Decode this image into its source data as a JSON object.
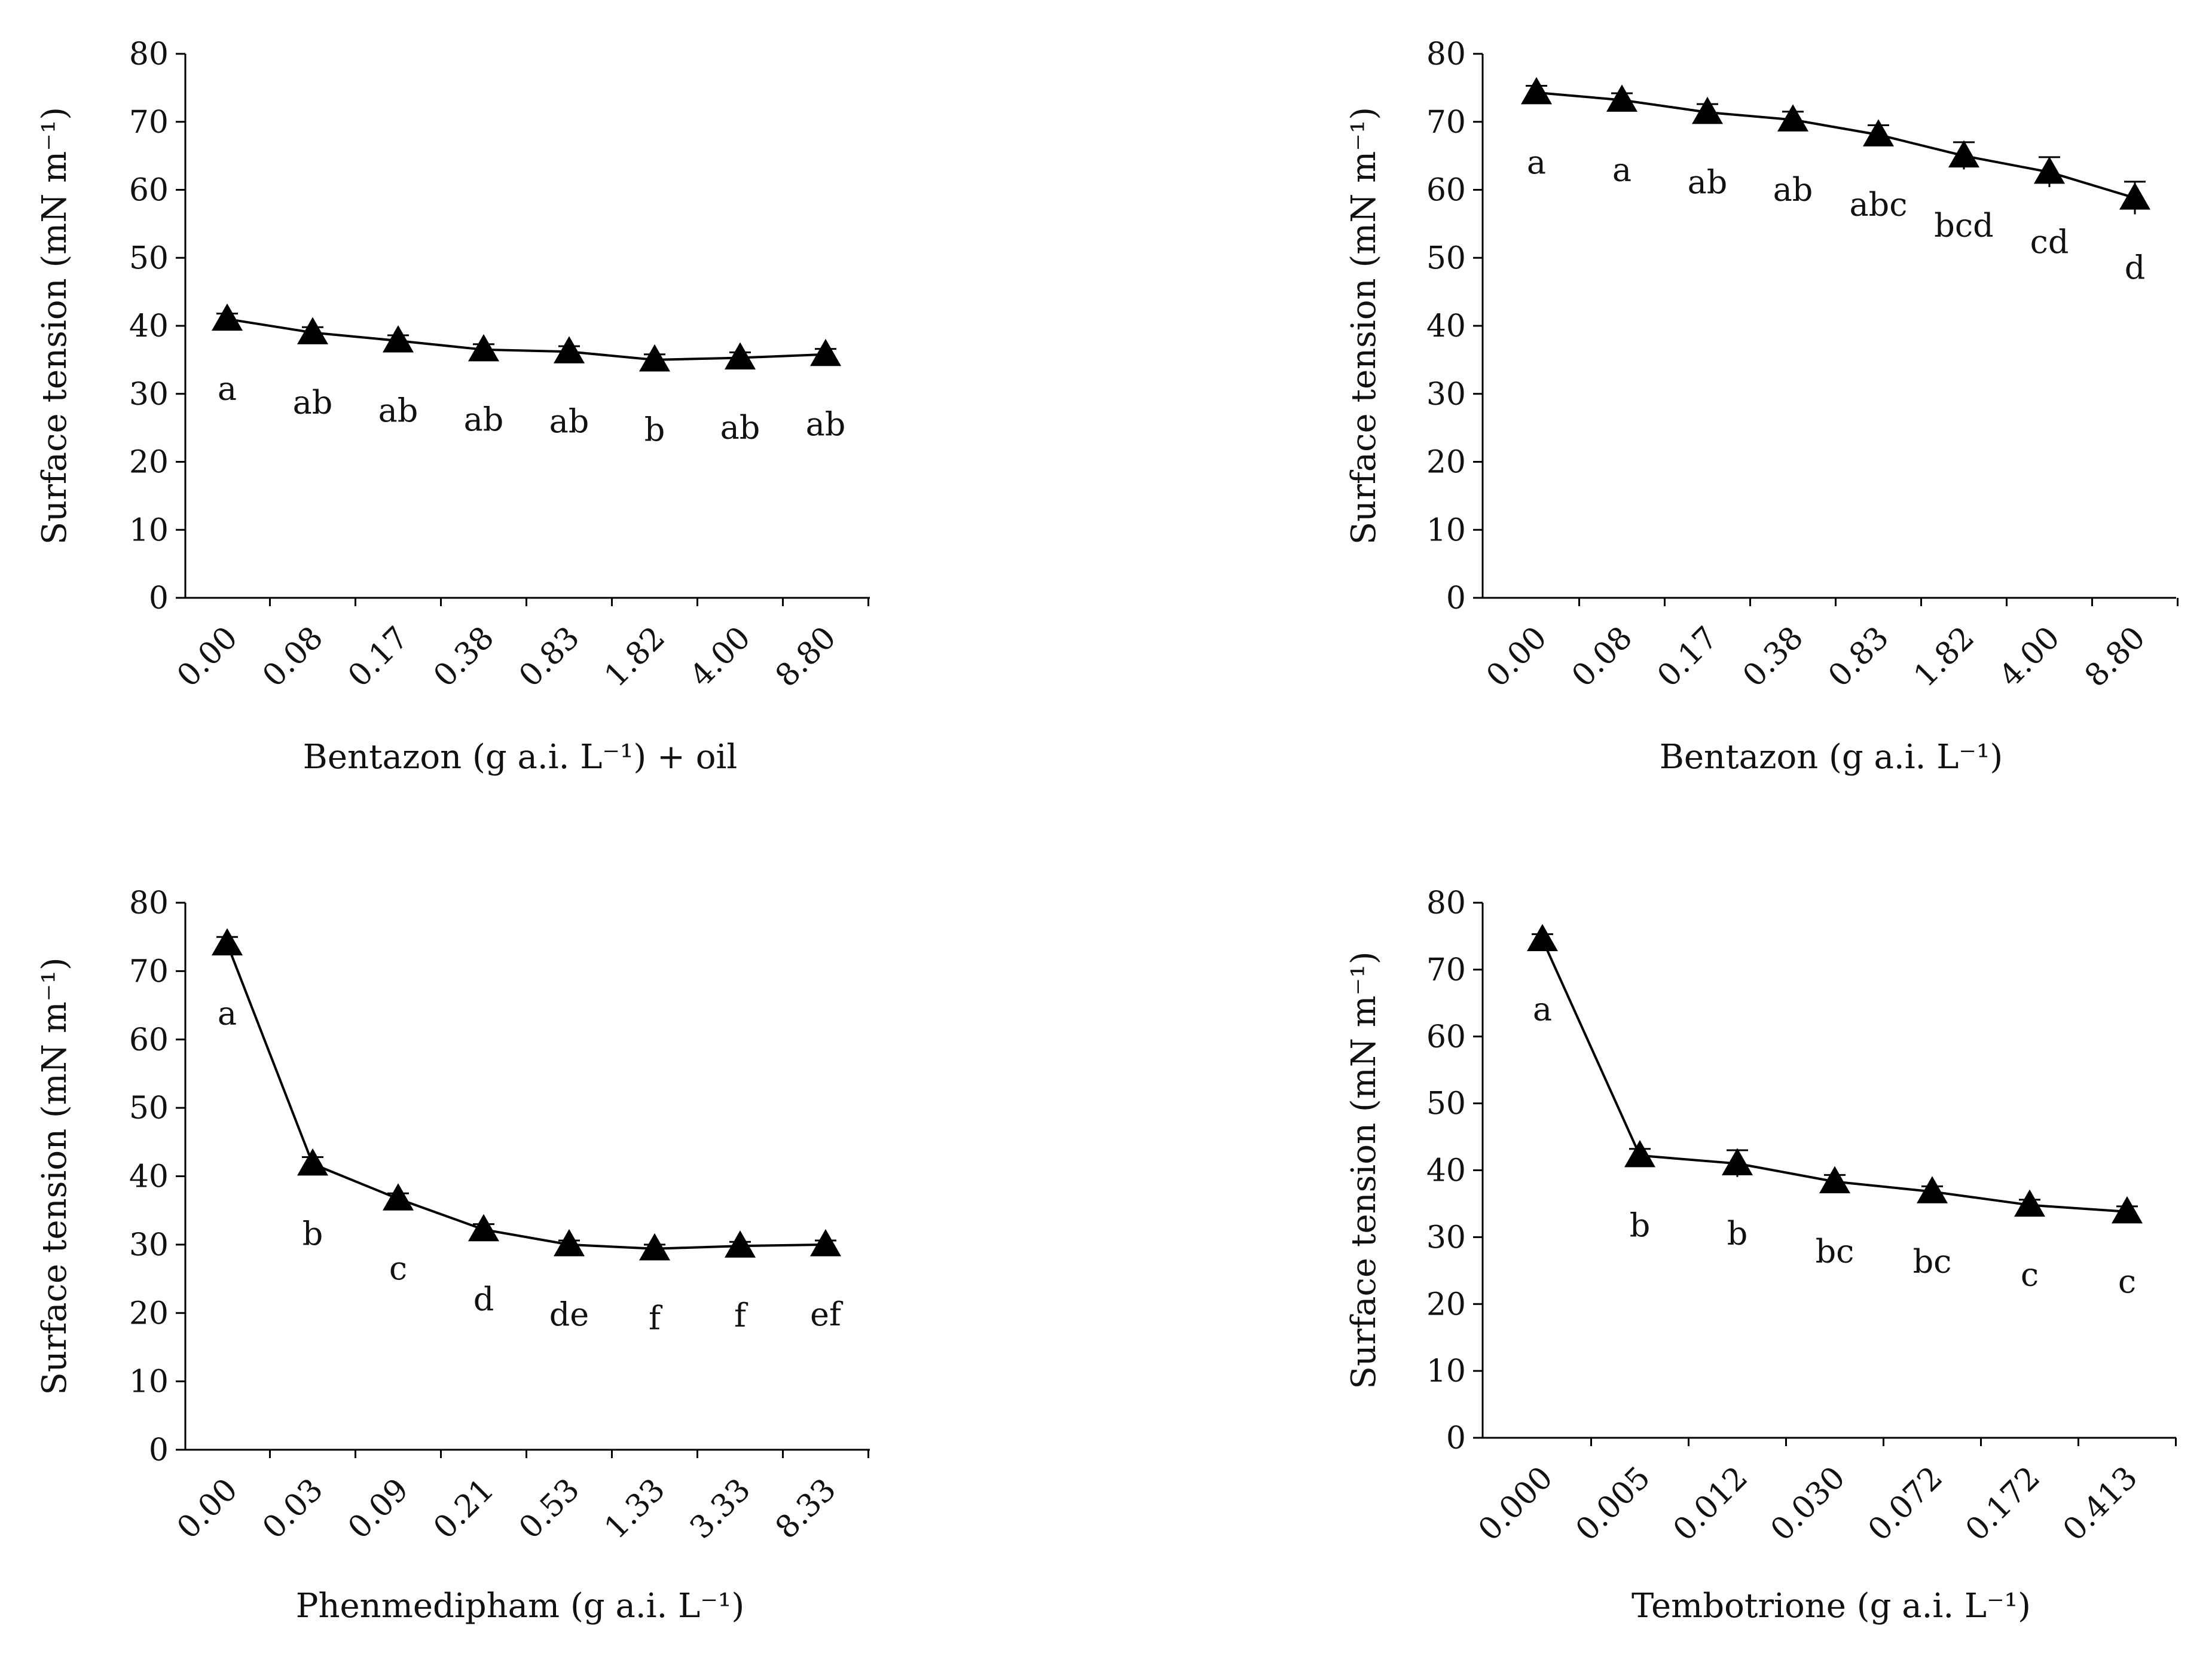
{
  "chart_data": [
    {
      "type": "line",
      "panel": "top-left",
      "ylabel": "Surface tension (mN m⁻¹)",
      "xlabel": "Bentazon (g a.i. L⁻¹) + oil",
      "categories": [
        "0.00",
        "0.08",
        "0.17",
        "0.38",
        "0.83",
        "1.82",
        "4.00",
        "8.80"
      ],
      "values": [
        41.0,
        39.0,
        37.8,
        36.5,
        36.2,
        35.0,
        35.3,
        35.8
      ],
      "errors": [
        0.8,
        0.8,
        0.8,
        0.8,
        0.8,
        0.8,
        0.8,
        0.8
      ],
      "letters": [
        "a",
        "ab",
        "ab",
        "ab",
        "ab",
        "b",
        "ab",
        "ab"
      ],
      "ylim": [
        0,
        80
      ],
      "yticks": [
        "0",
        "10",
        "20",
        "30",
        "40",
        "50",
        "60",
        "70",
        "80"
      ],
      "marker": "triangle",
      "color": "#000000"
    },
    {
      "type": "line",
      "panel": "top-right",
      "ylabel": "Surface tension (mN m⁻¹)",
      "xlabel": "Bentazon (g a.i. L⁻¹)",
      "categories": [
        "0.00",
        "0.08",
        "0.17",
        "0.38",
        "0.83",
        "1.82",
        "4.00",
        "8.80"
      ],
      "values": [
        74.3,
        73.2,
        71.4,
        70.3,
        68.1,
        65.0,
        62.6,
        58.8
      ],
      "errors": [
        1.0,
        1.0,
        1.2,
        1.2,
        1.4,
        2.0,
        2.2,
        2.4
      ],
      "letters": [
        "a",
        "a",
        "ab",
        "ab",
        "abc",
        "bcd",
        "cd",
        "d"
      ],
      "ylim": [
        0,
        80
      ],
      "yticks": [
        "0",
        "10",
        "20",
        "30",
        "40",
        "50",
        "60",
        "70",
        "80"
      ],
      "marker": "triangle",
      "color": "#000000"
    },
    {
      "type": "line",
      "panel": "bottom-left",
      "ylabel": "Surface tension (mN m⁻¹)",
      "xlabel": "Phenmedipham (g a.i. L⁻¹)",
      "categories": [
        "0.00",
        "0.03",
        "0.09",
        "0.21",
        "0.53",
        "1.33",
        "3.33",
        "8.33"
      ],
      "values": [
        74.0,
        41.8,
        36.7,
        32.2,
        30.0,
        29.4,
        29.8,
        30.0
      ],
      "errors": [
        1.0,
        1.0,
        0.8,
        0.8,
        0.6,
        0.6,
        0.6,
        0.6
      ],
      "letters": [
        "a",
        "b",
        "c",
        "d",
        "de",
        "f",
        "f",
        "ef"
      ],
      "ylim": [
        0,
        80
      ],
      "yticks": [
        "0",
        "10",
        "20",
        "30",
        "40",
        "50",
        "60",
        "70",
        "80"
      ],
      "marker": "triangle",
      "color": "#000000"
    },
    {
      "type": "line",
      "panel": "bottom-right",
      "ylabel": "Surface tension (mN m⁻¹)",
      "xlabel": "Tembotrione (g a.i. L⁻¹)",
      "categories": [
        "0.000",
        "0.005",
        "0.012",
        "0.030",
        "0.072",
        "0.172",
        "0.413"
      ],
      "values": [
        74.5,
        42.2,
        41.0,
        38.3,
        36.8,
        34.8,
        33.8
      ],
      "errors": [
        0.8,
        1.0,
        2.0,
        1.0,
        0.8,
        0.8,
        0.8
      ],
      "letters": [
        "a",
        "b",
        "b",
        "bc",
        "bc",
        "c",
        "c"
      ],
      "ylim": [
        0,
        80
      ],
      "yticks": [
        "0",
        "10",
        "20",
        "30",
        "40",
        "50",
        "60",
        "70",
        "80"
      ],
      "marker": "triangle",
      "color": "#000000"
    }
  ]
}
